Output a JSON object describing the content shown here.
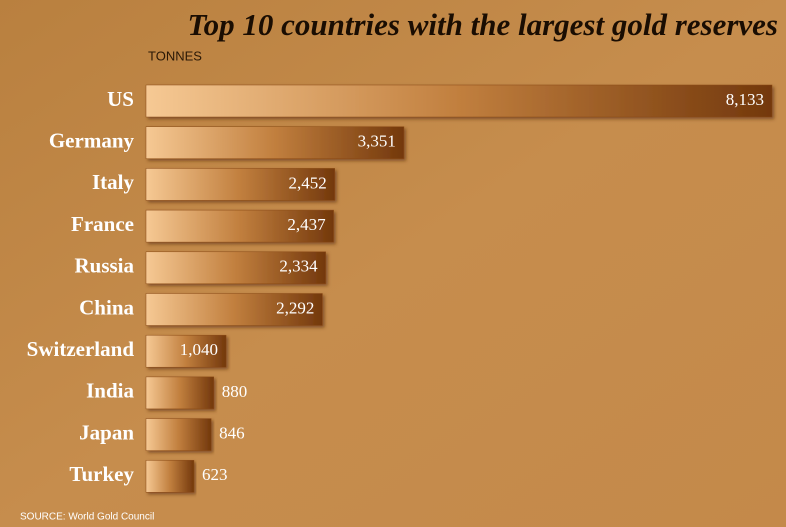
{
  "chart_data": {
    "type": "bar",
    "orientation": "horizontal",
    "title": "Top 10 countries with the largest gold reserves",
    "subtitle": "TONNES",
    "source": "SOURCE: World Gold Council",
    "categories": [
      "US",
      "Germany",
      "Italy",
      "France",
      "Russia",
      "China",
      "Switzerland",
      "India",
      "Japan",
      "Turkey"
    ],
    "values": [
      8133,
      3351,
      2452,
      2437,
      2334,
      2292,
      1040,
      880,
      846,
      623
    ],
    "value_labels": [
      "8,133",
      "3,351",
      "2,452",
      "2,437",
      "2,334",
      "2,292",
      "1,040",
      "880",
      "846",
      "623"
    ],
    "color": "#8a4a16"
  }
}
